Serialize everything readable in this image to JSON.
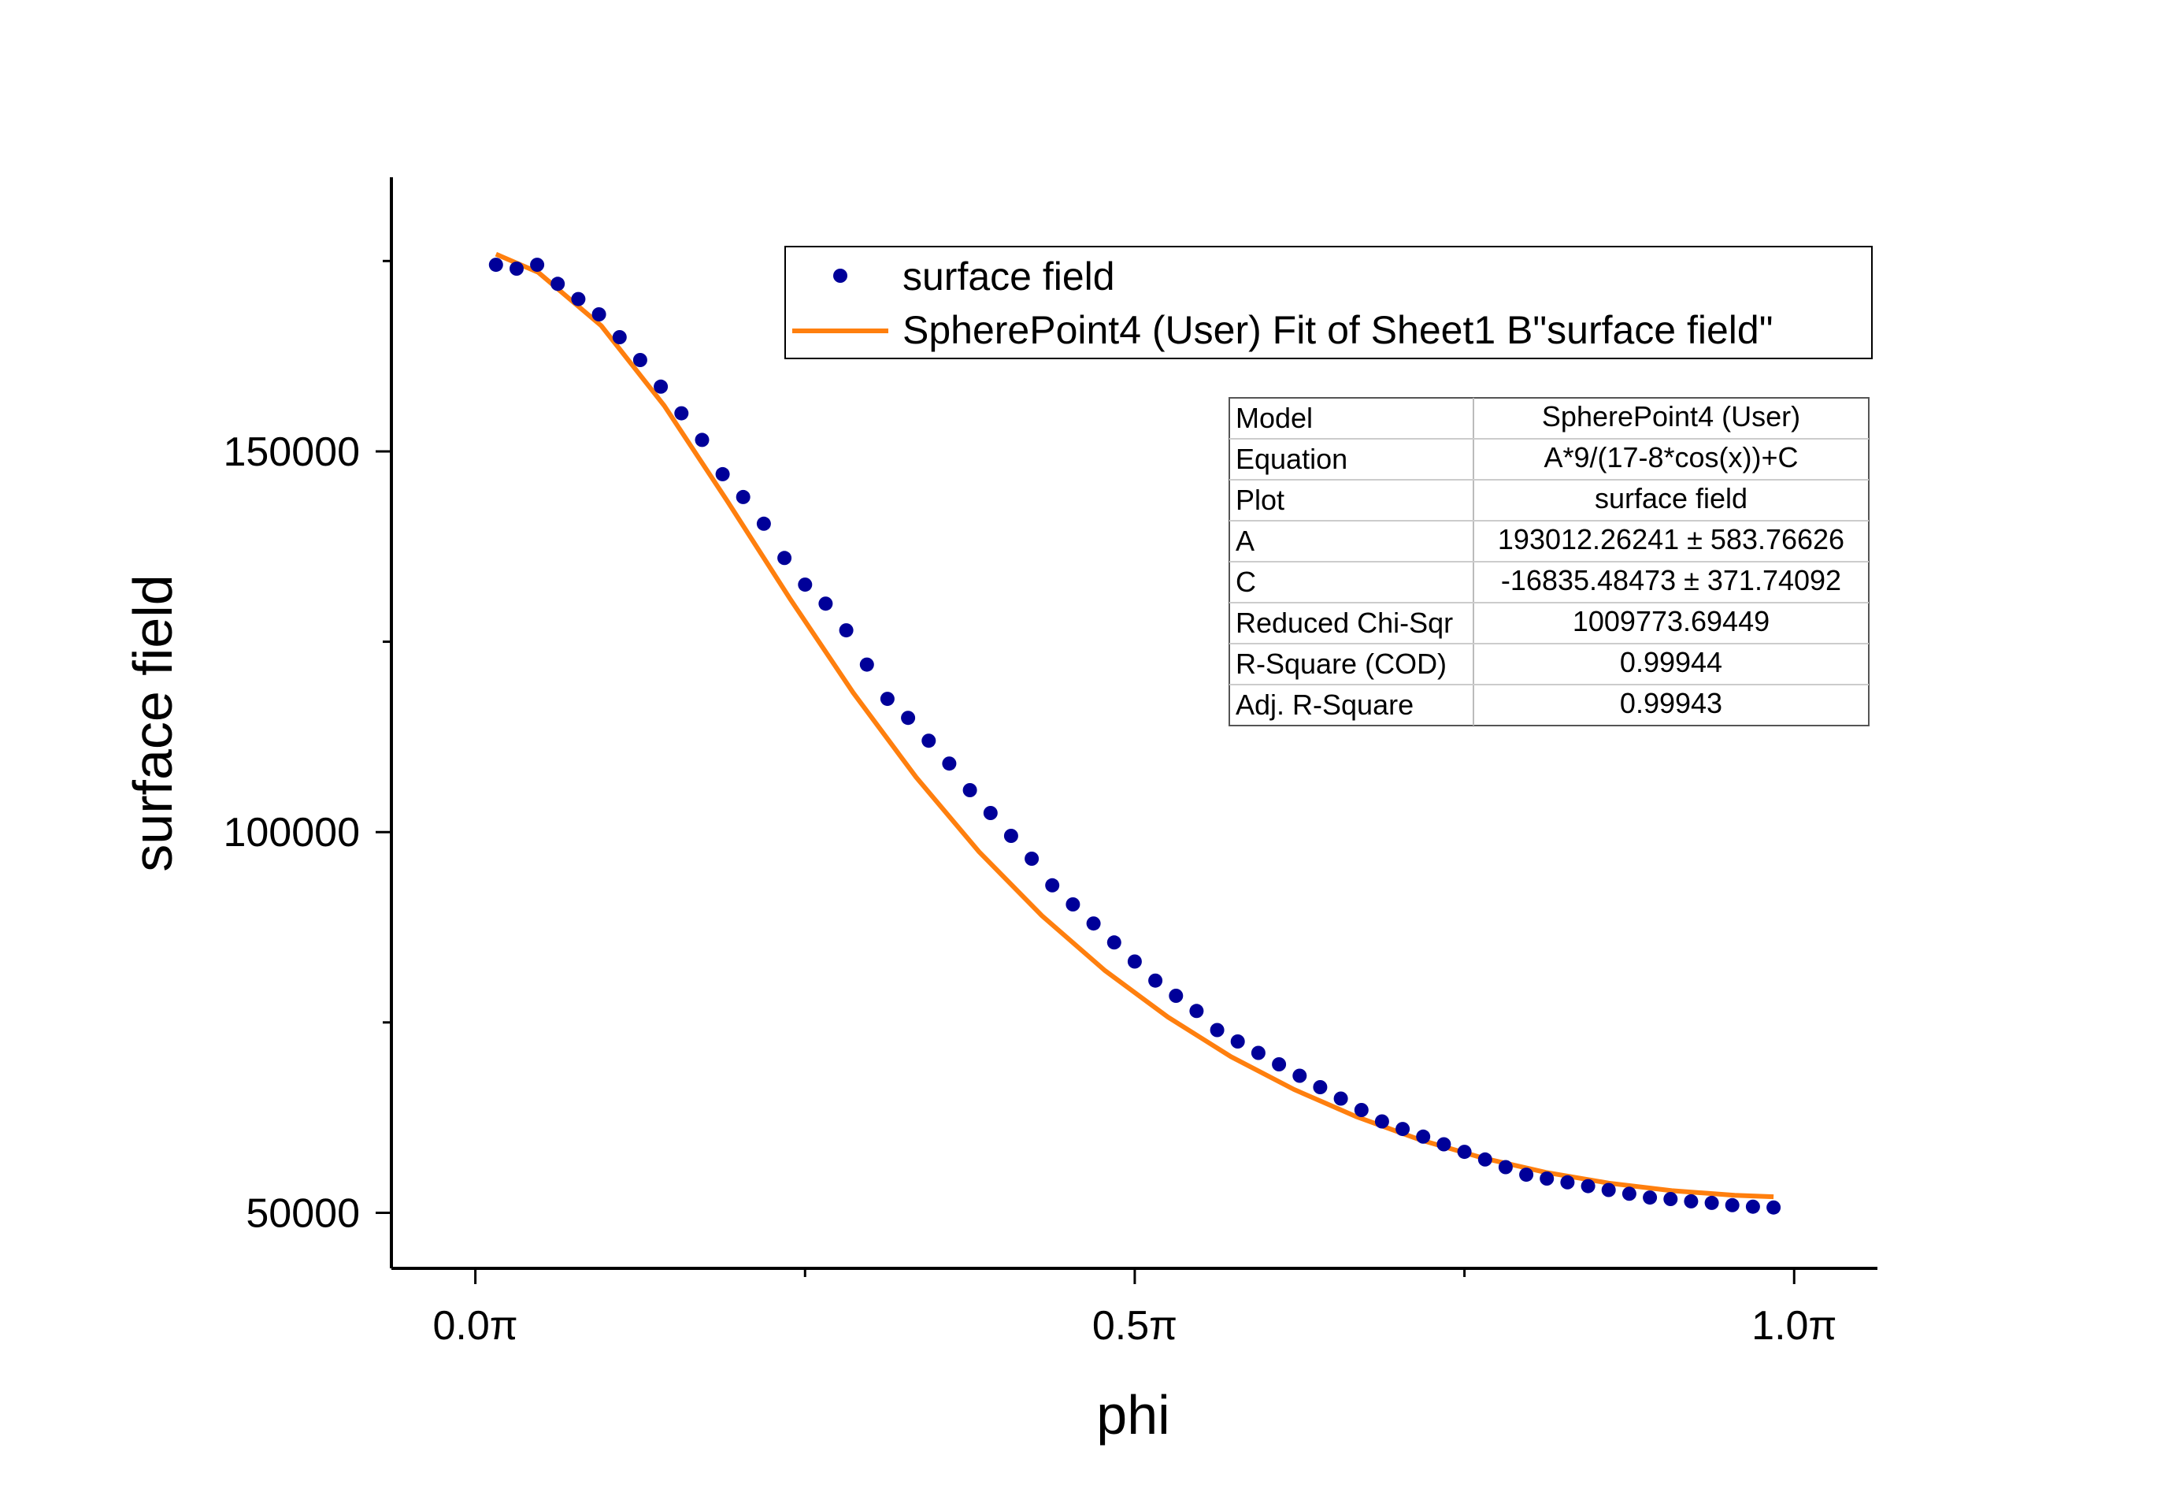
{
  "chart_data": {
    "type": "scatter",
    "xlabel": "phi",
    "ylabel": "surface field",
    "x_ticks": [
      {
        "value": 0.0,
        "label": "0.0π"
      },
      {
        "value": 1.5708,
        "label": "0.5π"
      },
      {
        "value": 3.1416,
        "label": "1.0π"
      }
    ],
    "x_minor_ticks": [
      0.7854,
      2.3562
    ],
    "y_ticks": [
      {
        "value": 50000,
        "label": "50000"
      },
      {
        "value": 100000,
        "label": "100000"
      },
      {
        "value": 150000,
        "label": "150000"
      }
    ],
    "y_minor_ticks": [
      75000,
      125000,
      175000
    ],
    "xlim": [
      -0.2,
      3.34
    ],
    "ylim": [
      42700,
      186000
    ],
    "grid": false,
    "legend_position": "top-right",
    "series": [
      {
        "name": "surface field",
        "kind": "scatter",
        "color": "#000099",
        "x": [
          0.0491,
          0.0982,
          0.1473,
          0.1963,
          0.2454,
          0.2945,
          0.3436,
          0.3927,
          0.4418,
          0.4909,
          0.54,
          0.589,
          0.6381,
          0.6872,
          0.7363,
          0.7854,
          0.8345,
          0.8836,
          0.9327,
          0.9817,
          1.0308,
          1.0799,
          1.129,
          1.1781,
          1.2272,
          1.2763,
          1.3254,
          1.3744,
          1.4235,
          1.4726,
          1.5217,
          1.5708,
          1.6199,
          1.669,
          1.7181,
          1.7671,
          1.8162,
          1.8653,
          1.9144,
          1.9635,
          2.0126,
          2.0617,
          2.1108,
          2.1598,
          2.2089,
          2.258,
          2.3071,
          2.3562,
          2.4053,
          2.4544,
          2.5035,
          2.5525,
          2.6016,
          2.6507,
          2.6998,
          2.7489,
          2.798,
          2.8471,
          2.8962,
          2.9452,
          2.9943,
          3.0434,
          3.0925
        ],
        "y": [
          174500,
          174000,
          174500,
          172000,
          170000,
          168000,
          165000,
          162000,
          158500,
          155000,
          151500,
          147000,
          144000,
          140500,
          136000,
          132500,
          130000,
          126500,
          122000,
          117500,
          115000,
          112000,
          109000,
          105500,
          102500,
          99500,
          96500,
          93000,
          90500,
          88000,
          85500,
          83000,
          80500,
          78500,
          76500,
          74000,
          72500,
          71000,
          69500,
          68000,
          66500,
          65000,
          63500,
          62000,
          61000,
          60000,
          59000,
          58000,
          57000,
          56000,
          55000,
          54500,
          54000,
          53500,
          53000,
          52500,
          52000,
          51800,
          51500,
          51300,
          51000,
          50800,
          50700
        ]
      },
      {
        "name": "SpherePoint4 (User) Fit of Sheet1 B\"surface field\"",
        "kind": "line",
        "color": "#FF7F0E",
        "x": [
          0.0491,
          0.15,
          0.3,
          0.45,
          0.6,
          0.75,
          0.9,
          1.05,
          1.2,
          1.35,
          1.5,
          1.65,
          1.8,
          1.95,
          2.1,
          2.25,
          2.4,
          2.55,
          2.7,
          2.85,
          3.0,
          3.0925
        ],
        "y": [
          175900,
          173500,
          166500,
          156000,
          143500,
          130600,
          118300,
          107200,
          97400,
          89000,
          81800,
          75700,
          70500,
          66200,
          62600,
          59600,
          57200,
          55300,
          53900,
          52900,
          52300,
          52100
        ]
      }
    ]
  },
  "fit_table": {
    "rows": [
      {
        "label": "Model",
        "value": "SpherePoint4 (User)"
      },
      {
        "label": "Equation",
        "value": "A*9/(17-8*cos(x))+C"
      },
      {
        "label": "Plot",
        "value": "surface field"
      },
      {
        "label": "A",
        "value": "193012.26241 ± 583.76626"
      },
      {
        "label": "C",
        "value": "-16835.48473 ± 371.74092"
      },
      {
        "label": "Reduced Chi-Sqr",
        "value": "1009773.69449"
      },
      {
        "label": "R-Square (COD)",
        "value": "0.99944"
      },
      {
        "label": "Adj. R-Square",
        "value": "0.99943"
      }
    ]
  }
}
